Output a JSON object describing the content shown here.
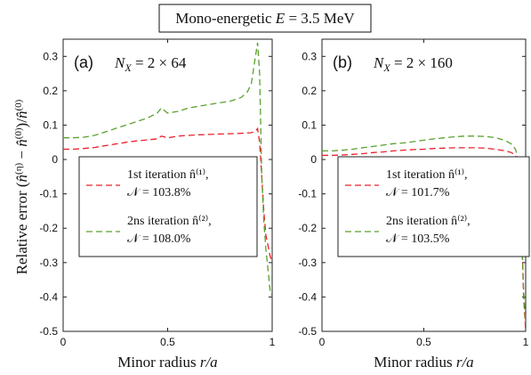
{
  "figure": {
    "title": "Mono-energetic E = 3.5 MeV",
    "ylabel": "Relative error (n̂⁽ⁿ⁾ − n̂⁽⁰⁾)/n̂⁽⁰⁾"
  },
  "chart_data": [
    {
      "type": "line",
      "panel_label": "(a)",
      "annotation": "N_X = 2 × 64",
      "xlabel": "Minor radius r/a",
      "xlim": [
        0,
        1
      ],
      "ylim": [
        -0.5,
        0.35
      ],
      "xticks": [
        "0",
        "0.5",
        "1"
      ],
      "yticks": [
        "0.3",
        "0.2",
        "0.1",
        "0",
        "-0.1",
        "-0.2",
        "-0.3",
        "-0.4",
        "-0.5"
      ],
      "grid": false,
      "legend_position": "center",
      "series": [
        {
          "name": "1st iteration n̂⁽¹⁾,",
          "metric": "𝒩 = 103.8%",
          "color": "#e8202a",
          "x": [
            0,
            0.05,
            0.1,
            0.15,
            0.2,
            0.25,
            0.3,
            0.35,
            0.4,
            0.45,
            0.47,
            0.5,
            0.55,
            0.6,
            0.65,
            0.7,
            0.75,
            0.8,
            0.85,
            0.9,
            0.92,
            0.93,
            0.94,
            0.95,
            0.96,
            0.97,
            0.98,
            0.99,
            1.0
          ],
          "y": [
            0.03,
            0.03,
            0.032,
            0.035,
            0.04,
            0.045,
            0.05,
            0.054,
            0.057,
            0.06,
            0.068,
            0.063,
            0.068,
            0.07,
            0.072,
            0.073,
            0.074,
            0.075,
            0.076,
            0.078,
            0.082,
            0.09,
            0.05,
            -0.05,
            -0.15,
            -0.22,
            -0.25,
            -0.28,
            -0.3
          ]
        },
        {
          "name": "2ns iteration n̂⁽²⁾,",
          "metric": "𝒩 = 108.0%",
          "color": "#5aa12e",
          "x": [
            0,
            0.05,
            0.1,
            0.15,
            0.2,
            0.25,
            0.3,
            0.35,
            0.4,
            0.45,
            0.47,
            0.5,
            0.55,
            0.6,
            0.65,
            0.7,
            0.75,
            0.8,
            0.85,
            0.88,
            0.9,
            0.91,
            0.92,
            0.93,
            0.94,
            0.95,
            0.96,
            0.97,
            0.98,
            0.99,
            1.0
          ],
          "y": [
            0.063,
            0.063,
            0.065,
            0.07,
            0.08,
            0.09,
            0.1,
            0.11,
            0.12,
            0.135,
            0.15,
            0.135,
            0.14,
            0.15,
            0.155,
            0.16,
            0.165,
            0.17,
            0.18,
            0.195,
            0.22,
            0.26,
            0.3,
            0.34,
            0.25,
            -0.05,
            -0.18,
            -0.26,
            -0.32,
            -0.38,
            -0.4
          ]
        }
      ]
    },
    {
      "type": "line",
      "panel_label": "(b)",
      "annotation": "N_X = 2 × 160",
      "xlabel": "Minor radius r/a",
      "xlim": [
        0,
        1
      ],
      "ylim": [
        -0.5,
        0.35
      ],
      "xticks": [
        "0",
        "0.5",
        "1"
      ],
      "yticks": [
        "0.3",
        "0.2",
        "0.1",
        "0",
        "-0.1",
        "-0.2",
        "-0.3",
        "-0.4",
        "-0.5"
      ],
      "grid": false,
      "legend_position": "center",
      "series": [
        {
          "name": "1st iteration n̂⁽¹⁾,",
          "metric": "𝒩 = 101.7%",
          "color": "#e8202a",
          "x": [
            0,
            0.05,
            0.1,
            0.15,
            0.2,
            0.25,
            0.3,
            0.35,
            0.4,
            0.45,
            0.5,
            0.55,
            0.6,
            0.65,
            0.7,
            0.75,
            0.8,
            0.85,
            0.9,
            0.93,
            0.95,
            0.96,
            0.97,
            0.98,
            0.99,
            1.0
          ],
          "y": [
            0.012,
            0.012,
            0.013,
            0.015,
            0.017,
            0.02,
            0.022,
            0.025,
            0.027,
            0.029,
            0.03,
            0.032,
            0.033,
            0.034,
            0.034,
            0.034,
            0.033,
            0.03,
            0.025,
            0.02,
            0.012,
            0.0,
            -0.08,
            -0.2,
            -0.4,
            -0.5
          ]
        },
        {
          "name": "2ns iteration n̂⁽²⁾,",
          "metric": "𝒩 = 103.5%",
          "color": "#5aa12e",
          "x": [
            0,
            0.05,
            0.1,
            0.15,
            0.2,
            0.25,
            0.3,
            0.35,
            0.4,
            0.45,
            0.5,
            0.55,
            0.6,
            0.65,
            0.7,
            0.75,
            0.8,
            0.85,
            0.9,
            0.93,
            0.95,
            0.96,
            0.97,
            0.98,
            0.99,
            1.0
          ],
          "y": [
            0.025,
            0.025,
            0.027,
            0.03,
            0.034,
            0.038,
            0.042,
            0.046,
            0.048,
            0.052,
            0.056,
            0.06,
            0.063,
            0.066,
            0.068,
            0.068,
            0.067,
            0.064,
            0.055,
            0.045,
            0.03,
            0.01,
            -0.08,
            -0.2,
            -0.38,
            -0.48
          ]
        }
      ]
    }
  ]
}
